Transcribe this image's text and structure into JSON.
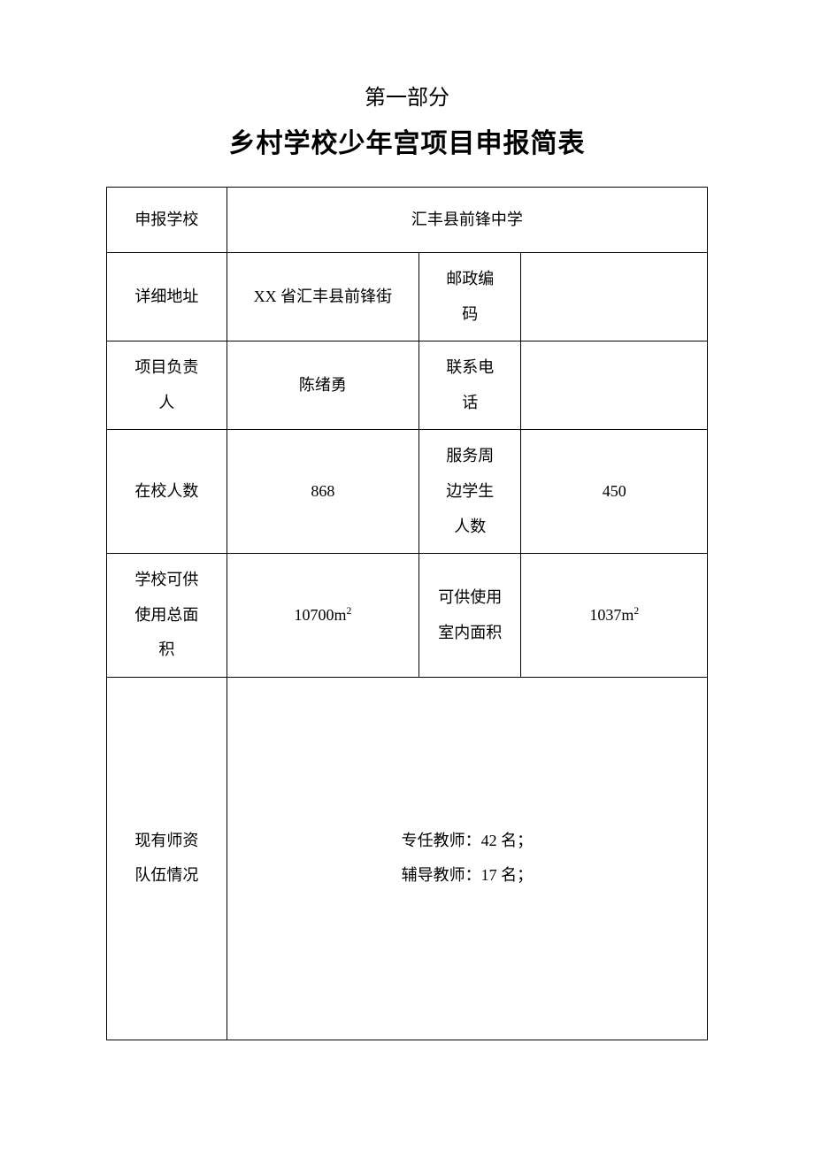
{
  "header": {
    "part_title": "第一部分",
    "main_title": "乡村学校少年宫项目申报简表"
  },
  "table": {
    "school_label": "申报学校",
    "school_value": "汇丰县前锋中学",
    "address_label": "详细地址",
    "address_value": "XX 省汇丰县前锋街",
    "postal_label_line1": "邮政编",
    "postal_label_line2": "码",
    "postal_value": "",
    "leader_label_line1": "项目负责",
    "leader_label_line2": "人",
    "leader_value": "陈绪勇",
    "phone_label_line1": "联系电",
    "phone_label_line2": "话",
    "phone_value": "",
    "enroll_label": "在校人数",
    "enroll_value": "868",
    "nearby_label_line1": "服务周",
    "nearby_label_line2": "边学生",
    "nearby_label_line3": "人数",
    "nearby_value": "450",
    "area_label_line1": "学校可供",
    "area_label_line2": "使用总面",
    "area_label_line3": "积",
    "area_value_num": "10700m",
    "area_value_sup": "2",
    "indoor_label_line1": "可供使用",
    "indoor_label_line2": "室内面积",
    "indoor_value_num": "1037m",
    "indoor_value_sup": "2",
    "teacher_label_line1": "现有师资",
    "teacher_label_line2": "队伍情况",
    "teacher_value_line1": "专任教师：42 名；",
    "teacher_value_line2": "辅导教师：17 名；"
  },
  "style": {
    "border_color": "#000000",
    "text_color": "#000000",
    "background_color": "#ffffff",
    "part_title_fontsize": 24,
    "main_title_fontsize": 30,
    "cell_fontsize": 18,
    "font_family": "SimSun"
  }
}
